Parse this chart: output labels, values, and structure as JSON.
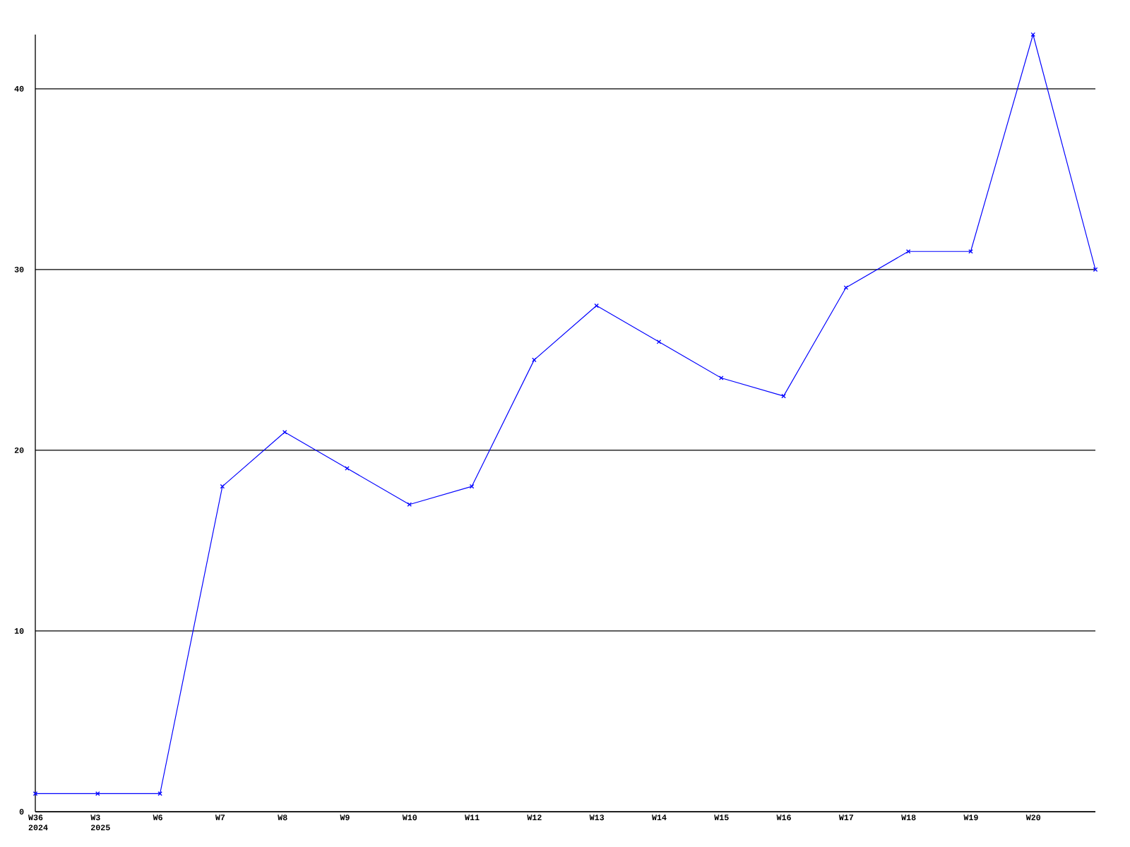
{
  "chart_data": {
    "type": "line",
    "categories": [
      "W36 2024",
      "W3 2025",
      "W6",
      "W7",
      "W8",
      "W9",
      "W10",
      "W11",
      "W12",
      "W13",
      "W14",
      "W15",
      "W16",
      "W17",
      "W18",
      "W19",
      "W20",
      null
    ],
    "values": [
      1,
      1,
      1,
      18,
      21,
      19,
      17,
      18,
      25,
      28,
      26,
      24,
      23,
      29,
      31,
      31,
      43,
      30
    ],
    "color": "#0000ff",
    "ylim": [
      0,
      43
    ],
    "yticks": [
      0,
      10,
      20,
      30,
      40
    ],
    "grid": "y",
    "marker": "cross",
    "line_style": "solid"
  }
}
